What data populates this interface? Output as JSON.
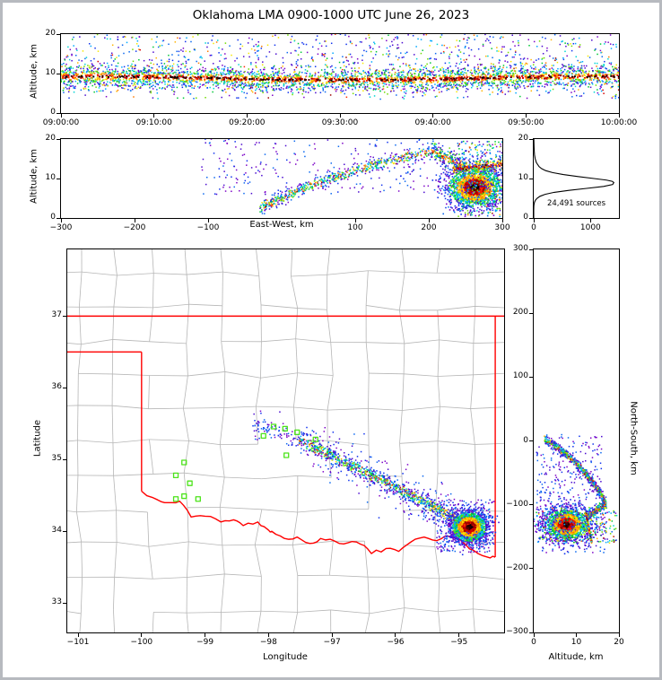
{
  "title": "Oklahoma LMA 0900-1000 UTC June 26, 2023",
  "colors": {
    "county": "#b6b6b6",
    "state": "#ff0000",
    "station": "#4ce31a",
    "frame": "#b7babf",
    "axis": "#000000"
  },
  "palettes": {
    "outer": [
      "#7d05c8",
      "#4b0bd0",
      "#1133ee",
      "#0b68f0"
    ],
    "mid": [
      "#00a8ff",
      "#00d5d5",
      "#00c837",
      "#6fdc00"
    ],
    "warm": [
      "#f5e800",
      "#ffb300",
      "#ff7a00"
    ],
    "hot": [
      "#ff2a00",
      "#d40000",
      "#9b0000"
    ],
    "core": [
      "#550000",
      "#260000",
      "#000000"
    ]
  },
  "chart_data": [
    {
      "id": "time_height",
      "type": "scatter",
      "xlabel": "",
      "ylabel": "Altitude, km",
      "xlim": [
        0,
        3600
      ],
      "ylim": [
        0,
        20
      ],
      "xticks": {
        "values": [
          0,
          600,
          1200,
          1800,
          2400,
          3000,
          3600
        ],
        "labels": [
          "09:00:00",
          "09:10:00",
          "09:20:00",
          "09:30:00",
          "09:40:00",
          "09:50:00",
          "10:00:00"
        ]
      },
      "yticks": {
        "values": [
          0,
          10,
          20
        ],
        "labels": [
          "0",
          "10",
          "20"
        ]
      },
      "description": "LMA source altitude vs time, density-colored; persistent dense layer near 9 km for the whole hour with sparse sources up to 20 km",
      "clusters": [
        {
          "kind": "band",
          "n": 3400,
          "x0": 0,
          "x1": 3600,
          "mean": 8.8,
          "sigma": 1.5,
          "wave": 0.45
        },
        {
          "kind": "cloud",
          "n": 650,
          "x0": 0,
          "x1": 3600,
          "y0": 10.2,
          "y1": 20,
          "style": "sparse"
        },
        {
          "kind": "cloud",
          "n": 160,
          "x0": 0,
          "x1": 3600,
          "y0": 3.5,
          "y1": 7.2,
          "style": "sparse"
        }
      ]
    },
    {
      "id": "ew_altitude",
      "type": "scatter",
      "xlabel": "East-West, km",
      "ylabel": "Altitude, km",
      "xlim": [
        -300,
        300
      ],
      "ylim": [
        0,
        20
      ],
      "xticks": {
        "values": [
          -300,
          -200,
          -100,
          100,
          200,
          300
        ],
        "labels": [
          "−300",
          "−200",
          "−100",
          "100",
          "200",
          "300"
        ]
      },
      "yticks": {
        "values": [
          0,
          10,
          20
        ],
        "labels": [
          "0",
          "10",
          "20"
        ]
      },
      "description": "Altitude vs east-west distance; sloped channel rising eastward into a dense storm core near x=260 km, 8 km altitude",
      "clusters": [
        {
          "kind": "line",
          "n": 650,
          "a": [
            -30,
            2.5
          ],
          "c": [
            60,
            11
          ],
          "b": [
            205,
            17
          ],
          "sigma": 0.8,
          "style": "cool"
        },
        {
          "kind": "cloud",
          "n": 240,
          "x0": -110,
          "x1": 220,
          "y0": 6,
          "y1": 20,
          "style": "purple"
        },
        {
          "kind": "line",
          "n": 240,
          "a": [
            205,
            17
          ],
          "b": [
            252,
            12.5
          ],
          "sigma": 1.0,
          "style": "rainbow"
        },
        {
          "kind": "blob",
          "n": 1700,
          "cx": 263,
          "cy": 7.8,
          "sx": 19,
          "sy": 2.6
        },
        {
          "kind": "line",
          "n": 260,
          "a": [
            233,
            12.2
          ],
          "b": [
            300,
            13.6
          ],
          "sigma": 0.6,
          "style": "hotline"
        },
        {
          "kind": "cloud",
          "n": 320,
          "x0": 238,
          "x1": 302,
          "y0": 0.3,
          "y1": 19.5,
          "style": "cool"
        },
        {
          "kind": "cloud",
          "n": 180,
          "x0": 215,
          "x1": 302,
          "y0": 2,
          "y1": 17,
          "style": "purple"
        }
      ]
    },
    {
      "id": "source_histogram",
      "type": "line",
      "xlabel": "",
      "ylabel": "",
      "xlim": [
        0,
        1500
      ],
      "ylim": [
        0,
        20
      ],
      "xticks": {
        "values": [
          0,
          1000
        ],
        "labels": [
          "0",
          "1000"
        ]
      },
      "yticks": {
        "values": [
          0,
          10,
          20
        ],
        "labels": [
          "0",
          "10",
          "20"
        ]
      },
      "annotation": "24,491 sources",
      "source_count": 24491,
      "curve": {
        "alt": [
          0,
          2,
          3,
          3.5,
          4,
          4.5,
          5,
          5.5,
          6,
          6.5,
          7,
          7.5,
          8,
          8.5,
          9,
          9.3,
          9.6,
          10,
          10.5,
          11,
          11.5,
          12,
          12.5,
          13,
          14,
          15,
          16,
          17,
          18,
          19,
          20
        ],
        "count": [
          0,
          0,
          2,
          6,
          14,
          30,
          60,
          110,
          200,
          360,
          620,
          930,
          1230,
          1390,
          1410,
          1380,
          1280,
          1060,
          780,
          520,
          330,
          210,
          140,
          95,
          48,
          26,
          14,
          9,
          6,
          4,
          2
        ]
      }
    },
    {
      "id": "map",
      "type": "scatter",
      "xlabel": "Longitude",
      "ylabel": "Latitude",
      "xlim": [
        -101.17,
        -94.29
      ],
      "ylim": [
        32.59,
        37.93
      ],
      "xticks": {
        "values": [
          -101,
          -100,
          -99,
          -98,
          -97,
          -96,
          -95
        ],
        "labels": [
          "−101",
          "−100",
          "−99",
          "−98",
          "−97",
          "−96",
          "−95"
        ]
      },
      "yticks": {
        "values": [
          33,
          34,
          35,
          36,
          37
        ],
        "labels": [
          "33",
          "34",
          "35",
          "36",
          "37"
        ]
      },
      "description": "Plan view over Oklahoma: lightning channel extends ESE from (-97.5, 35.3) to a dense storm core near (-94.84, 34.06); green squares are LMA stations; red = state border, gray = county lines",
      "counties": {
        "lon0": -101.55,
        "dlon": 0.565,
        "lat0": 32.42,
        "dlat": 0.47,
        "jlon": 0.11,
        "jlat": 0.09,
        "rows": 13,
        "cols": 14,
        "skip": 0.1
      },
      "state_border": {
        "north": [
          [
            -101.17,
            37
          ],
          [
            -94.29,
            37
          ]
        ],
        "panhandle_south": [
          [
            -101.17,
            36.5
          ],
          [
            -100,
            36.5
          ]
        ],
        "west": [
          [
            -100,
            36.5
          ],
          [
            -100,
            34.56
          ]
        ],
        "east": [
          [
            -94.43,
            33.64
          ],
          [
            -94.43,
            37
          ]
        ],
        "red_river": [
          [
            -100,
            34.56
          ],
          [
            -99.75,
            34.44
          ],
          [
            -99.58,
            34.4
          ],
          [
            -99.4,
            34.42
          ],
          [
            -99.22,
            34.2
          ],
          [
            -99.0,
            34.21
          ],
          [
            -98.75,
            34.13
          ],
          [
            -98.55,
            34.16
          ],
          [
            -98.4,
            34.08
          ],
          [
            -98.17,
            34.13
          ],
          [
            -98.02,
            34.03
          ],
          [
            -97.95,
            34.0
          ],
          [
            -97.75,
            33.9
          ],
          [
            -97.55,
            33.92
          ],
          [
            -97.35,
            33.83
          ],
          [
            -97.18,
            33.9
          ],
          [
            -96.95,
            33.86
          ],
          [
            -96.75,
            33.84
          ],
          [
            -96.55,
            33.82
          ],
          [
            -96.38,
            33.69
          ],
          [
            -96.15,
            33.76
          ],
          [
            -95.95,
            33.72
          ],
          [
            -95.76,
            33.85
          ],
          [
            -95.55,
            33.92
          ],
          [
            -95.35,
            33.87
          ],
          [
            -95.15,
            33.93
          ],
          [
            -94.95,
            33.86
          ],
          [
            -94.78,
            33.74
          ],
          [
            -94.55,
            33.64
          ],
          [
            -94.43,
            33.64
          ]
        ]
      },
      "stations": [
        [
          -99.33,
          34.96
        ],
        [
          -99.46,
          34.78
        ],
        [
          -99.24,
          34.67
        ],
        [
          -99.33,
          34.49
        ],
        [
          -99.11,
          34.45
        ],
        [
          -99.46,
          34.45
        ],
        [
          -97.92,
          35.46
        ],
        [
          -97.74,
          35.43
        ],
        [
          -97.55,
          35.38
        ],
        [
          -97.26,
          35.28
        ],
        [
          -97.72,
          35.06
        ],
        [
          -98.08,
          35.33
        ]
      ],
      "clusters": [
        {
          "kind": "line",
          "n": 900,
          "a": [
            -97.52,
            35.27
          ],
          "c": [
            -96.2,
            34.72
          ],
          "b": [
            -94.95,
            34.12
          ],
          "sigma": 0.05,
          "style": "track"
        },
        {
          "kind": "line",
          "n": 320,
          "a": [
            -97.52,
            35.27
          ],
          "c": [
            -96.2,
            34.72
          ],
          "b": [
            -94.95,
            34.12
          ],
          "sigma": 0.17,
          "style": "purple"
        },
        {
          "kind": "line",
          "n": 90,
          "a": [
            -98.25,
            35.5
          ],
          "b": [
            -97.52,
            35.27
          ],
          "sigma": 0.09,
          "style": "purple"
        },
        {
          "kind": "blob",
          "n": 2400,
          "cx": -94.84,
          "cy": 34.06,
          "sx": 0.14,
          "sy": 0.105
        },
        {
          "kind": "cloud",
          "n": 140,
          "x0": -95.35,
          "x1": -94.45,
          "y0": 33.7,
          "y1": 34.0,
          "style": "purple"
        },
        {
          "kind": "cloud",
          "n": 90,
          "x0": -95.6,
          "x1": -94.4,
          "y0": 34.1,
          "y1": 34.45,
          "style": "purple"
        }
      ]
    },
    {
      "id": "ns_altitude",
      "type": "scatter",
      "xlabel": "Altitude, km",
      "ylabel": "North-South, km",
      "xlim": [
        0,
        20
      ],
      "ylim": [
        -300,
        300
      ],
      "xticks": {
        "values": [
          0,
          10,
          20
        ],
        "labels": [
          "0",
          "10",
          "20"
        ]
      },
      "yticks": {
        "values": [
          300,
          200,
          100,
          0,
          -100,
          -200,
          -300
        ],
        "labels": [
          "300",
          "200",
          "100",
          "0",
          "−100",
          "−200",
          "−300"
        ]
      },
      "description": "North-south distance vs altitude; channel descends southward into the dense core near NS = -130 km, 8 km altitude",
      "clusters": [
        {
          "kind": "line",
          "n": 650,
          "a": [
            2.5,
            3
          ],
          "c": [
            12,
            -35
          ],
          "b": [
            17,
            -98
          ],
          "sigma": 3.5,
          "style": "cool"
        },
        {
          "kind": "cloud",
          "n": 240,
          "x0": 0.5,
          "x1": 16,
          "y0": -110,
          "y1": 10,
          "style": "purple"
        },
        {
          "kind": "line",
          "n": 240,
          "a": [
            17,
            -98
          ],
          "b": [
            12.5,
            -120
          ],
          "sigma": 3,
          "style": "rainbow"
        },
        {
          "kind": "blob",
          "n": 1700,
          "cx": 7.8,
          "cy": -131,
          "sx": 2.6,
          "sy": 13
        },
        {
          "kind": "line",
          "n": 260,
          "a": [
            12.2,
            -112
          ],
          "b": [
            13.6,
            -158
          ],
          "sigma": 2,
          "style": "hotline"
        },
        {
          "kind": "cloud",
          "n": 320,
          "x0": 0.3,
          "x1": 19.5,
          "y0": -160,
          "y1": -104,
          "style": "cool"
        },
        {
          "kind": "cloud",
          "n": 180,
          "x0": 2,
          "x1": 17,
          "y0": -175,
          "y1": -100,
          "style": "purple"
        }
      ]
    }
  ]
}
